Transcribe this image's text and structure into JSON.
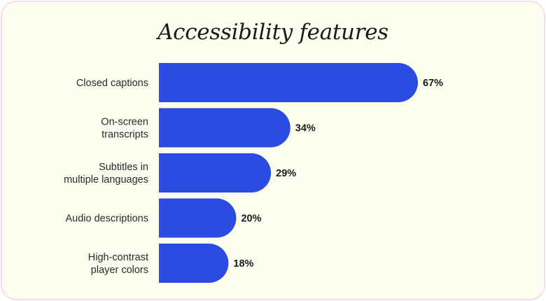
{
  "chart_data": {
    "type": "bar",
    "orientation": "horizontal",
    "title": "Accessibility features",
    "categories": [
      [
        "Closed captions"
      ],
      [
        "On-screen",
        "transcripts"
      ],
      [
        "Subtitles in",
        "multiple languages"
      ],
      [
        "Audio descriptions"
      ],
      [
        "High-contrast",
        "player colors"
      ]
    ],
    "values": [
      67,
      34,
      29,
      20,
      18
    ],
    "value_labels": [
      "67%",
      "34%",
      "29%",
      "20%",
      "18%"
    ],
    "unit": "%",
    "xlim": [
      0,
      67
    ],
    "grid": false,
    "legend": "none",
    "bar_color": "#2c4be3"
  }
}
